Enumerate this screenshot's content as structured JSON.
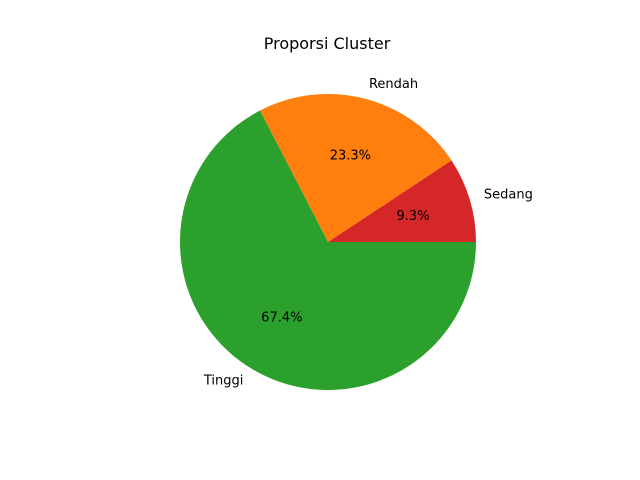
{
  "chart_data": {
    "type": "pie",
    "title": "Proporsi Cluster",
    "slices": [
      {
        "label": "Sedang",
        "value": 9.3,
        "pct_label": "9.3%",
        "color": "#d62728"
      },
      {
        "label": "Rendah",
        "value": 23.3,
        "pct_label": "23.3%",
        "color": "#ff7f0e"
      },
      {
        "label": "Tinggi",
        "value": 67.4,
        "pct_label": "67.4%",
        "color": "#2ca02c"
      }
    ],
    "start_angle_deg": 0,
    "direction": "counterclockwise"
  }
}
